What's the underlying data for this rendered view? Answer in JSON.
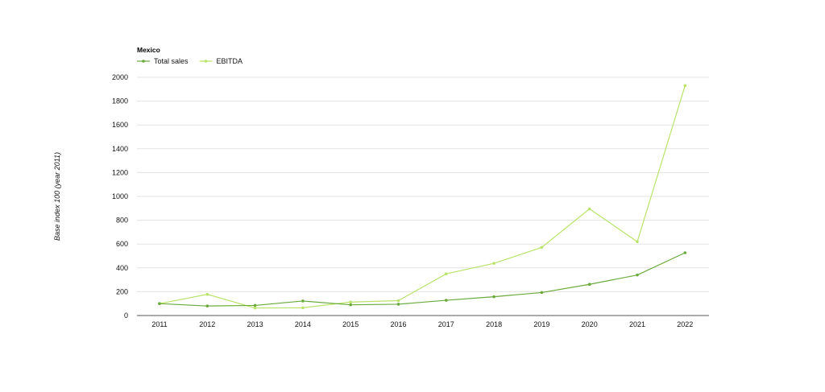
{
  "chart_data": {
    "type": "line",
    "title": "Mexico",
    "ylabel": "Base index 100 (year 2011)",
    "xlabel": "",
    "categories": [
      "2011",
      "2012",
      "2013",
      "2014",
      "2015",
      "2016",
      "2017",
      "2018",
      "2019",
      "2020",
      "2021",
      "2022"
    ],
    "ylim": [
      0,
      2000
    ],
    "yticks": [
      0,
      200,
      400,
      600,
      800,
      1000,
      1200,
      1400,
      1600,
      1800,
      2000
    ],
    "grid": true,
    "legend_position": "top-left",
    "series": [
      {
        "name": "Total sales",
        "color": "#6aaa3a",
        "values": [
          100,
          80,
          85,
          122,
          90,
          95,
          128,
          158,
          193,
          262,
          340,
          527
        ]
      },
      {
        "name": "EBITDA",
        "color": "#b9e36a",
        "values": [
          100,
          178,
          63,
          65,
          113,
          125,
          350,
          438,
          572,
          895,
          620,
          1930
        ]
      }
    ]
  }
}
